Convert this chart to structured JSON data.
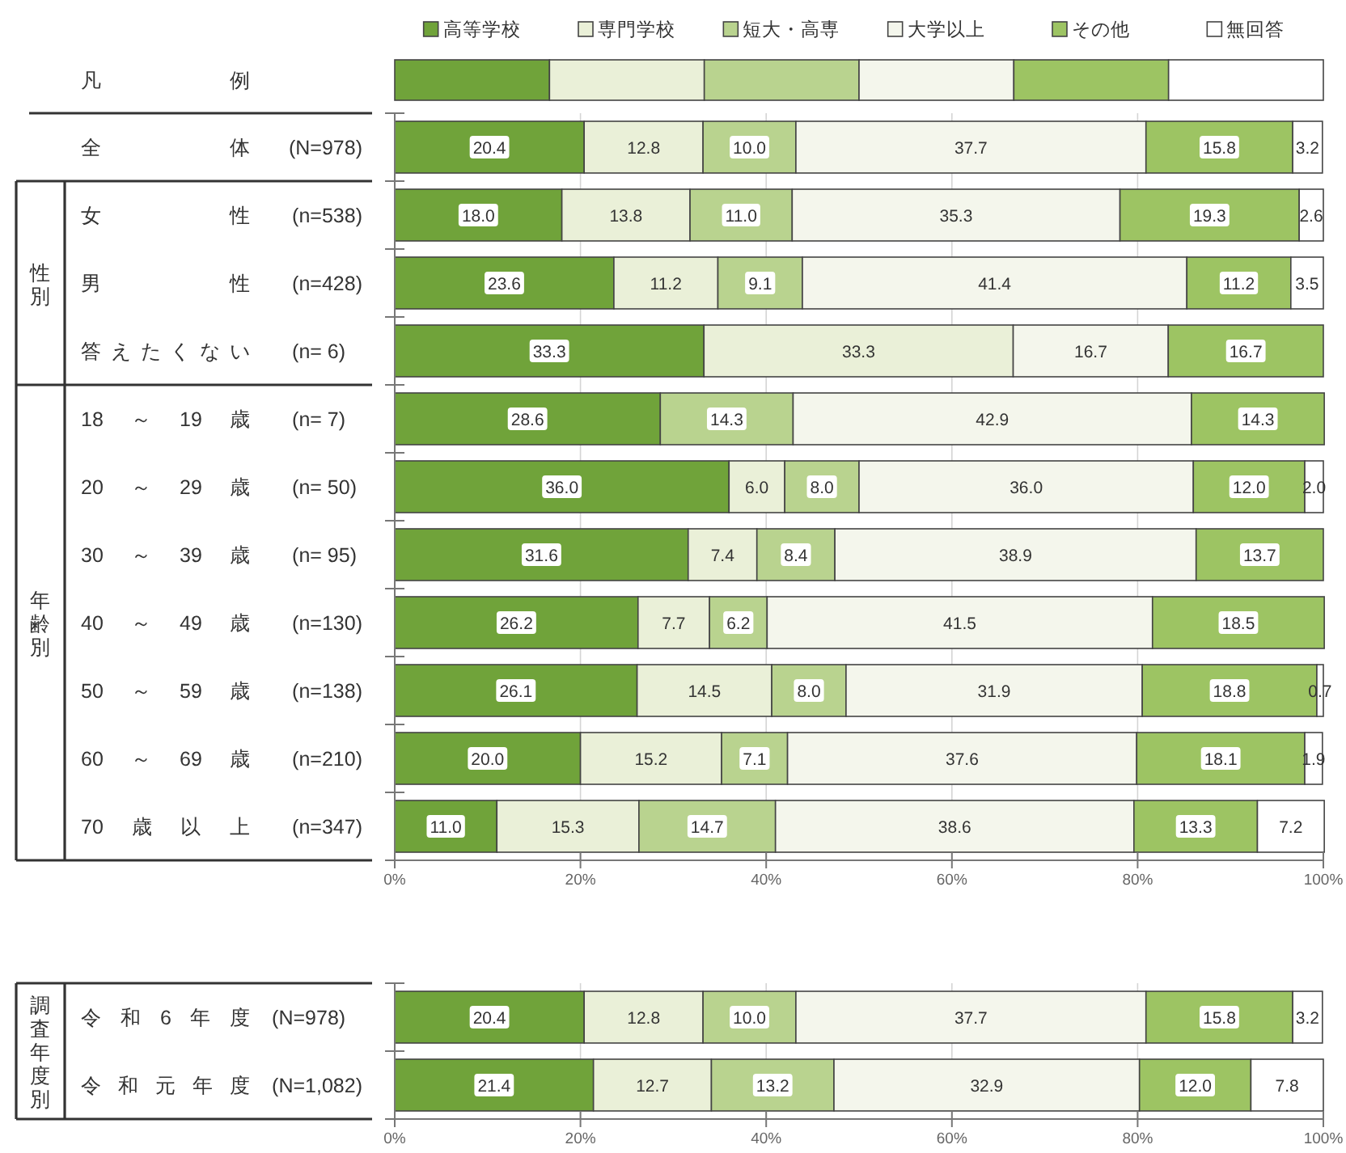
{
  "chart_data": [
    {
      "type": "bar",
      "orientation": "horizontal",
      "stacked": true,
      "legend": "top",
      "legend_title": "凡 例",
      "categories": [
        "全 体 (N=978)"
      ],
      "series": [
        {
          "name": "高等学校",
          "color": "#70a33a",
          "values": [
            20.4
          ],
          "value_labels": [
            "20.4"
          ]
        },
        {
          "name": "専門学校",
          "color": "#eaf0d8",
          "values": [
            12.8
          ],
          "value_labels": [
            "12.8"
          ]
        },
        {
          "name": "短大・高専",
          "color": "#b9d38f",
          "values": [
            10.0
          ],
          "value_labels": [
            "10.0"
          ]
        },
        {
          "name": "大学以上",
          "color": "#f4f6ec",
          "values": [
            37.7
          ],
          "value_labels": [
            "37.7"
          ]
        },
        {
          "name": "その他",
          "color": "#9dc463",
          "values": [
            15.8
          ],
          "value_labels": [
            "15.8"
          ]
        },
        {
          "name": "無回答",
          "color": "#ffffff",
          "values": [
            3.2
          ],
          "value_labels": [
            "3.2"
          ]
        }
      ],
      "xlim": [
        0,
        100
      ],
      "xticks": [
        0,
        20,
        40,
        60,
        80,
        100
      ],
      "grid": "x",
      "tick_labels": "y"
    },
    {
      "type": "bar",
      "orientation": "horizontal",
      "stacked": true,
      "ylabel": "性別",
      "categories": [
        "女 性 (n=538)",
        "男 性 (n=428)",
        "答えたくない (n= 6)"
      ],
      "series": [
        {
          "color": "#70a33a",
          "values": [
            18.0,
            23.6,
            33.3
          ],
          "value_labels": [
            "18.0",
            "23.6",
            "33.3"
          ]
        },
        {
          "color": "#eaf0d8",
          "values": [
            13.8,
            11.2,
            33.3
          ],
          "value_labels": [
            "13.8",
            "11.2",
            "33.3"
          ]
        },
        {
          "color": "#b9d38f",
          "values": [
            11.0,
            9.1,
            null
          ],
          "value_labels": [
            "11.0",
            "9.1",
            null
          ]
        },
        {
          "color": "#f4f6ec",
          "values": [
            35.3,
            41.4,
            16.7
          ],
          "value_labels": [
            "35.3",
            "41.4",
            "16.7"
          ]
        },
        {
          "color": "#9dc463",
          "values": [
            19.3,
            11.2,
            16.7
          ],
          "value_labels": [
            "19.3",
            "11.2",
            "16.7"
          ]
        },
        {
          "color": "#ffffff",
          "values": [
            2.6,
            3.5,
            null
          ],
          "value_labels": [
            "2.6",
            "3.5",
            null
          ]
        }
      ],
      "xlim": [
        0,
        100
      ],
      "xticks": [
        0,
        20,
        40,
        60,
        80,
        100
      ],
      "grid": "x",
      "tick_labels": "y"
    },
    {
      "type": "bar",
      "orientation": "horizontal",
      "stacked": true,
      "ylabel": "年齢別",
      "categories": [
        "18 ～ 19 歳 (n= 7)",
        "20 ～ 29 歳 (n= 50)",
        "30 ～ 39 歳 (n= 95)",
        "40 ～ 49 歳 (n=130)",
        "50 ～ 59 歳 (n=138)",
        "60 ～ 69 歳 (n=210)",
        "70 歳 以 上 (n=347)"
      ],
      "series": [
        {
          "color": "#70a33a",
          "values": [
            28.6,
            36.0,
            31.6,
            26.2,
            26.1,
            20.0,
            11.0
          ],
          "value_labels": [
            "28.6",
            "36.0",
            "31.6",
            "26.2",
            "26.1",
            "20.0",
            "11.0"
          ]
        },
        {
          "color": "#eaf0d8",
          "values": [
            null,
            6.0,
            7.4,
            7.7,
            14.5,
            15.2,
            15.3
          ],
          "value_labels": [
            null,
            "6.0",
            "7.4",
            "7.7",
            "14.5",
            "15.2",
            "15.3"
          ]
        },
        {
          "color": "#b9d38f",
          "values": [
            14.3,
            8.0,
            8.4,
            6.2,
            8.0,
            7.1,
            14.7
          ],
          "value_labels": [
            "14.3",
            "8.0",
            "8.4",
            "6.2",
            "8.0",
            "7.1",
            "14.7"
          ]
        },
        {
          "color": "#f4f6ec",
          "values": [
            42.9,
            36.0,
            38.9,
            41.5,
            31.9,
            37.6,
            38.6
          ],
          "value_labels": [
            "42.9",
            "36.0",
            "38.9",
            "41.5",
            "31.9",
            "37.6",
            "38.6"
          ]
        },
        {
          "color": "#9dc463",
          "values": [
            14.3,
            12.0,
            13.7,
            18.5,
            18.8,
            18.1,
            13.3
          ],
          "value_labels": [
            "14.3",
            "12.0",
            "13.7",
            "18.5",
            "18.8",
            "18.1",
            "13.3"
          ]
        },
        {
          "color": "#ffffff",
          "values": [
            null,
            2.0,
            null,
            null,
            0.7,
            1.9,
            7.2
          ],
          "value_labels": [
            null,
            "2.0",
            null,
            null,
            "0.7",
            "1.9",
            "7.2"
          ]
        }
      ],
      "xlim": [
        0,
        100
      ],
      "xticks": [
        {
          "value": 0,
          "label": "0%"
        },
        {
          "value": 20,
          "label": "20%"
        },
        {
          "value": 40,
          "label": "40%"
        },
        {
          "value": 60,
          "label": "60%"
        },
        {
          "value": 80,
          "label": "80%"
        },
        {
          "value": 100,
          "label": "100%"
        }
      ],
      "grid": "x"
    },
    {
      "type": "bar",
      "orientation": "horizontal",
      "stacked": true,
      "ylabel": "調査年度別",
      "categories": [
        "令 和 6 年 度 (N=978)",
        "令 和 元 年 度 (N=1,082)"
      ],
      "series": [
        {
          "color": "#70a33a",
          "values": [
            20.4,
            21.4
          ],
          "value_labels": [
            "20.4",
            "21.4"
          ]
        },
        {
          "color": "#eaf0d8",
          "values": [
            12.8,
            12.7
          ],
          "value_labels": [
            "12.8",
            "12.7"
          ]
        },
        {
          "color": "#b9d38f",
          "values": [
            10.0,
            13.2
          ],
          "value_labels": [
            "10.0",
            "13.2"
          ]
        },
        {
          "color": "#f4f6ec",
          "values": [
            37.7,
            32.9
          ],
          "value_labels": [
            "37.7",
            "32.9"
          ]
        },
        {
          "color": "#9dc463",
          "values": [
            15.8,
            12.0
          ],
          "value_labels": [
            "15.8",
            "12.0"
          ]
        },
        {
          "color": "#ffffff",
          "values": [
            3.2,
            7.8
          ],
          "value_labels": [
            "3.2",
            "7.8"
          ]
        }
      ],
      "xlim": [
        0,
        100
      ],
      "xticks": [
        {
          "value": 0,
          "label": "0%"
        },
        {
          "value": 20,
          "label": "20%"
        },
        {
          "value": 40,
          "label": "40%"
        },
        {
          "value": 60,
          "label": "60%"
        },
        {
          "value": 80,
          "label": "80%"
        },
        {
          "value": 100,
          "label": "100%"
        }
      ],
      "grid": "x"
    }
  ]
}
